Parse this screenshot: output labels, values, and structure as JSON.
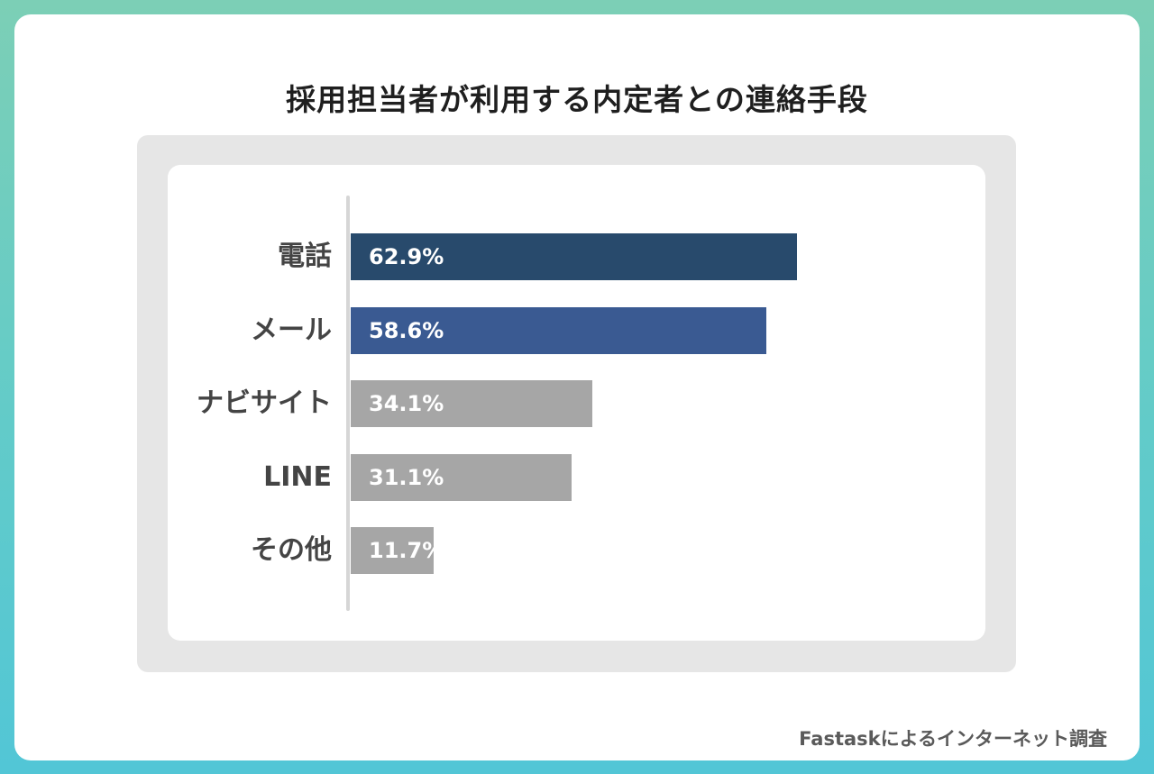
{
  "chart_data": {
    "type": "bar",
    "orientation": "horizontal",
    "title": "採用担当者が利用する内定者との連絡手段",
    "categories": [
      "電話",
      "メール",
      "ナビサイト",
      "LINE",
      "その他"
    ],
    "values": [
      62.9,
      58.6,
      34.1,
      31.1,
      11.7
    ],
    "value_labels": [
      "62.9%",
      "58.6%",
      "34.1%",
      "31.1%",
      "11.7%"
    ],
    "unit": "%",
    "xlim": [
      0,
      100
    ],
    "bar_colors": [
      "#284a6c",
      "#3a5a92",
      "#a6a6a6",
      "#a6a6a6",
      "#a6a6a6"
    ],
    "xlabel": "",
    "ylabel": ""
  },
  "source": "Fastaskによるインターネット調査",
  "colors": {
    "background_gradient_top": "#7ccfb6",
    "background_gradient_bottom": "#52c6d6",
    "panel": "#e6e6e6",
    "title_text": "#1f1f1f",
    "label_text": "#444444"
  }
}
